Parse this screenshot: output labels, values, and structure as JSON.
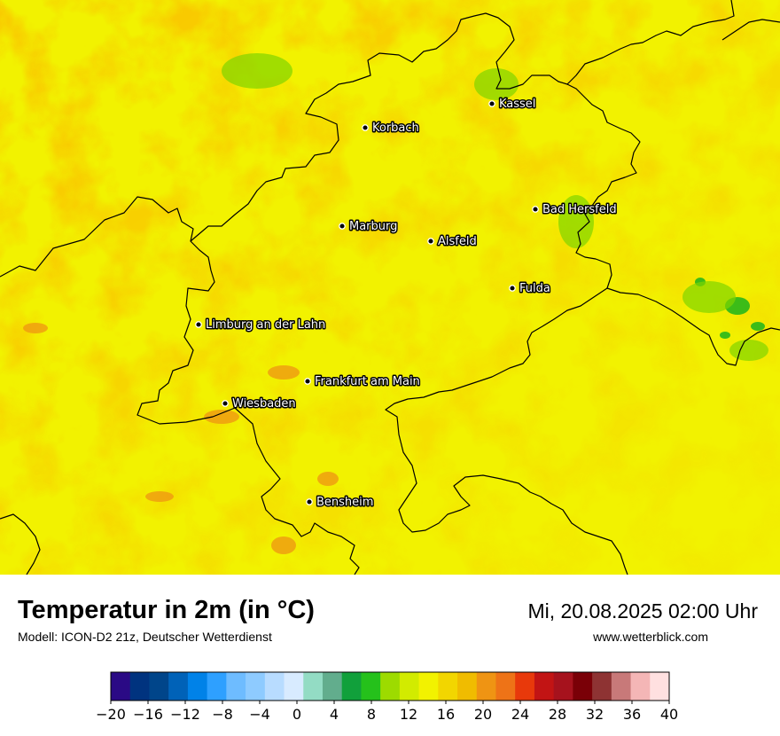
{
  "header": {
    "title": "Temperatur in 2m (in °C)",
    "model": "Modell: ICON-D2 21z, Deutscher Wetterdienst",
    "datetime": "Mi, 20.08.2025 02:00 Uhr",
    "website": "www.wetterblick.com"
  },
  "map": {
    "cities": [
      {
        "name": "Kassel"
      },
      {
        "name": "Korbach"
      },
      {
        "name": "Bad Hersfeld"
      },
      {
        "name": "Marburg"
      },
      {
        "name": "Alsfeld"
      },
      {
        "name": "Fulda"
      },
      {
        "name": "Limburg an der Lahn"
      },
      {
        "name": "Frankfurt am Main"
      },
      {
        "name": "Wiesbaden"
      },
      {
        "name": "Bensheim"
      }
    ],
    "dominant_colors": [
      "#f2f200",
      "#f0d800",
      "#f0bf00",
      "#d4ec00",
      "#a8e000",
      "#1db51d"
    ]
  },
  "legend": {
    "unit": "°C",
    "ticks": [
      "−20",
      "−16",
      "−12",
      "−8",
      "−4",
      "0",
      "4",
      "8",
      "12",
      "16",
      "20",
      "24",
      "28",
      "32",
      "36",
      "40"
    ],
    "colors": [
      "#2a0a85",
      "#00337f",
      "#00458a",
      "#0062b8",
      "#0082e8",
      "#2ea0ff",
      "#6ebcff",
      "#8ecbff",
      "#b8dcff",
      "#d8ebff",
      "#93dcc4",
      "#62ad8d",
      "#11a03b",
      "#25c11b",
      "#9ddb00",
      "#d2eb00",
      "#f2f200",
      "#f2d600",
      "#f0bc00",
      "#ef9413",
      "#ee7317",
      "#e8390b",
      "#c21414",
      "#a6121d",
      "#7a0007",
      "#8e3333",
      "#c87979",
      "#f4b6b6",
      "#ffe0e0"
    ]
  }
}
